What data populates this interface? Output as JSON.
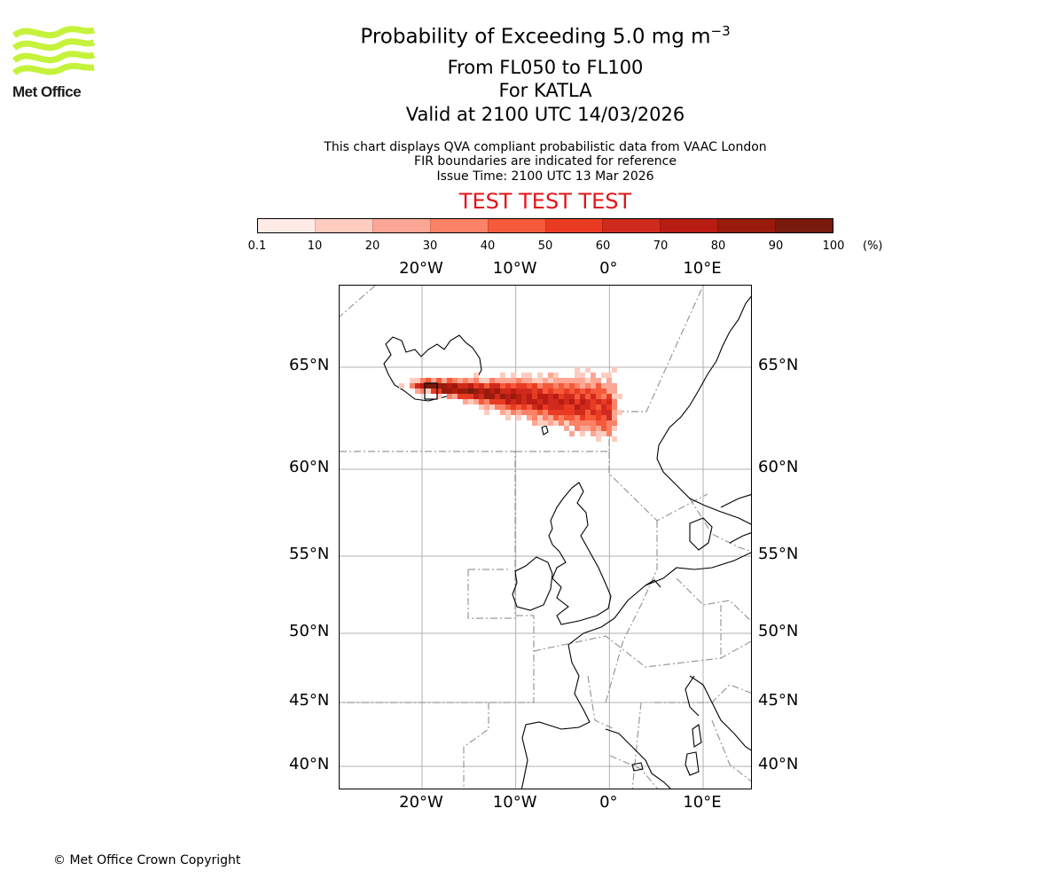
{
  "logo": {
    "text": "Met Office",
    "wave_color": "#c5f23a",
    "text_color": "#1a1a1a"
  },
  "header": {
    "title": "Probability of Exceeding 5.0 mg m",
    "title_superscript": "−3",
    "flight_levels": "From FL050 to FL100",
    "volcano": "For KATLA",
    "valid_time": "Valid at 2100 UTC 14/03/2026",
    "description": "This chart displays QVA compliant probabilistic data from VAAC London",
    "fir_note": "FIR boundaries are indicated for reference",
    "issue_time": "Issue Time: 2100 UTC 13 Mar 2026",
    "test_banner": "TEST TEST TEST",
    "test_color": "#e3141a"
  },
  "colorbar": {
    "unit": "(%)",
    "ticks": [
      "0.1",
      "10",
      "20",
      "30",
      "40",
      "50",
      "60",
      "70",
      "80",
      "90",
      "100"
    ],
    "colors": [
      "#ffebe6",
      "#fdccbf",
      "#fca795",
      "#fb8266",
      "#f55a3a",
      "#e93b24",
      "#d02a1c",
      "#b81c12",
      "#981b0c",
      "#781a0c"
    ]
  },
  "map": {
    "lon_labels": [
      "20°W",
      "10°W",
      "0°",
      "10°E"
    ],
    "lat_labels": [
      "65°N",
      "60°N",
      "55°N",
      "50°N",
      "45°N",
      "40°N"
    ],
    "extent": {
      "lon_min": -28.8,
      "lon_max": 15.3,
      "lat_min": 38.6,
      "lat_max": 69.2
    },
    "plume_peak_lon": -18.8,
    "plume_peak_lat": 63.6
  },
  "footer": {
    "copyright": "© Met Office Crown Copyright"
  }
}
